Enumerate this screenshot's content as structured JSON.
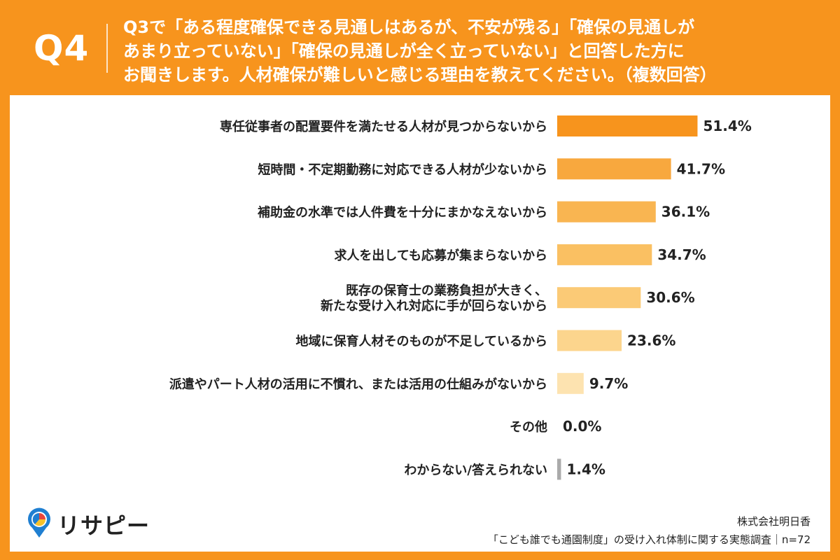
{
  "header": {
    "qnum": "Q4",
    "question_lines": [
      "Q3で「ある程度確保できる見通しはあるが、不安が残る」「確保の見通しが",
      "あまり立っていない」「確保の見通しが全く立っていない」と回答した方に",
      "お聞きします。人材確保が難しいと感じる理由を教えてください。（複数回答）"
    ]
  },
  "chart_data": {
    "type": "bar",
    "orientation": "horizontal",
    "categories": [
      [
        "専任従事者の配置要件を満たせる人材が見つからないから"
      ],
      [
        "短時間・不定期勤務に対応できる人材が少ないから"
      ],
      [
        "補助金の水準では人件費を十分にまかなえないから"
      ],
      [
        "求人を出しても応募が集まらないから"
      ],
      [
        "既存の保育士の業務負担が大きく、",
        "新たな受け入れ対応に手が回らないから"
      ],
      [
        "地域に保育人材そのものが不足しているから"
      ],
      [
        "派遣やパート人材の活用に不慣れ、または活用の仕組みがないから"
      ],
      [
        "その他"
      ],
      [
        "わからない/答えられない"
      ]
    ],
    "values": [
      51.4,
      41.7,
      36.1,
      34.7,
      30.6,
      23.6,
      9.7,
      0.0,
      1.4
    ],
    "value_labels": [
      "51.4%",
      "41.7%",
      "36.1%",
      "34.7%",
      "30.6%",
      "23.6%",
      "9.7%",
      "0.0%",
      "1.4%"
    ],
    "bar_colors": [
      "#f7941d",
      "#f8a83e",
      "#f9b551",
      "#fac062",
      "#fbca76",
      "#fcd58d",
      "#fde3b0",
      "#fde3b0",
      "#aaaaaa"
    ],
    "xlim": [
      0,
      100
    ],
    "grid": false,
    "legend": "none"
  },
  "logo": {
    "text": "リサピー"
  },
  "footer": {
    "company": "株式会社明日香",
    "survey": "「こども誰でも通園制度」の受け入れ体制に関する実態調査｜n=72"
  }
}
